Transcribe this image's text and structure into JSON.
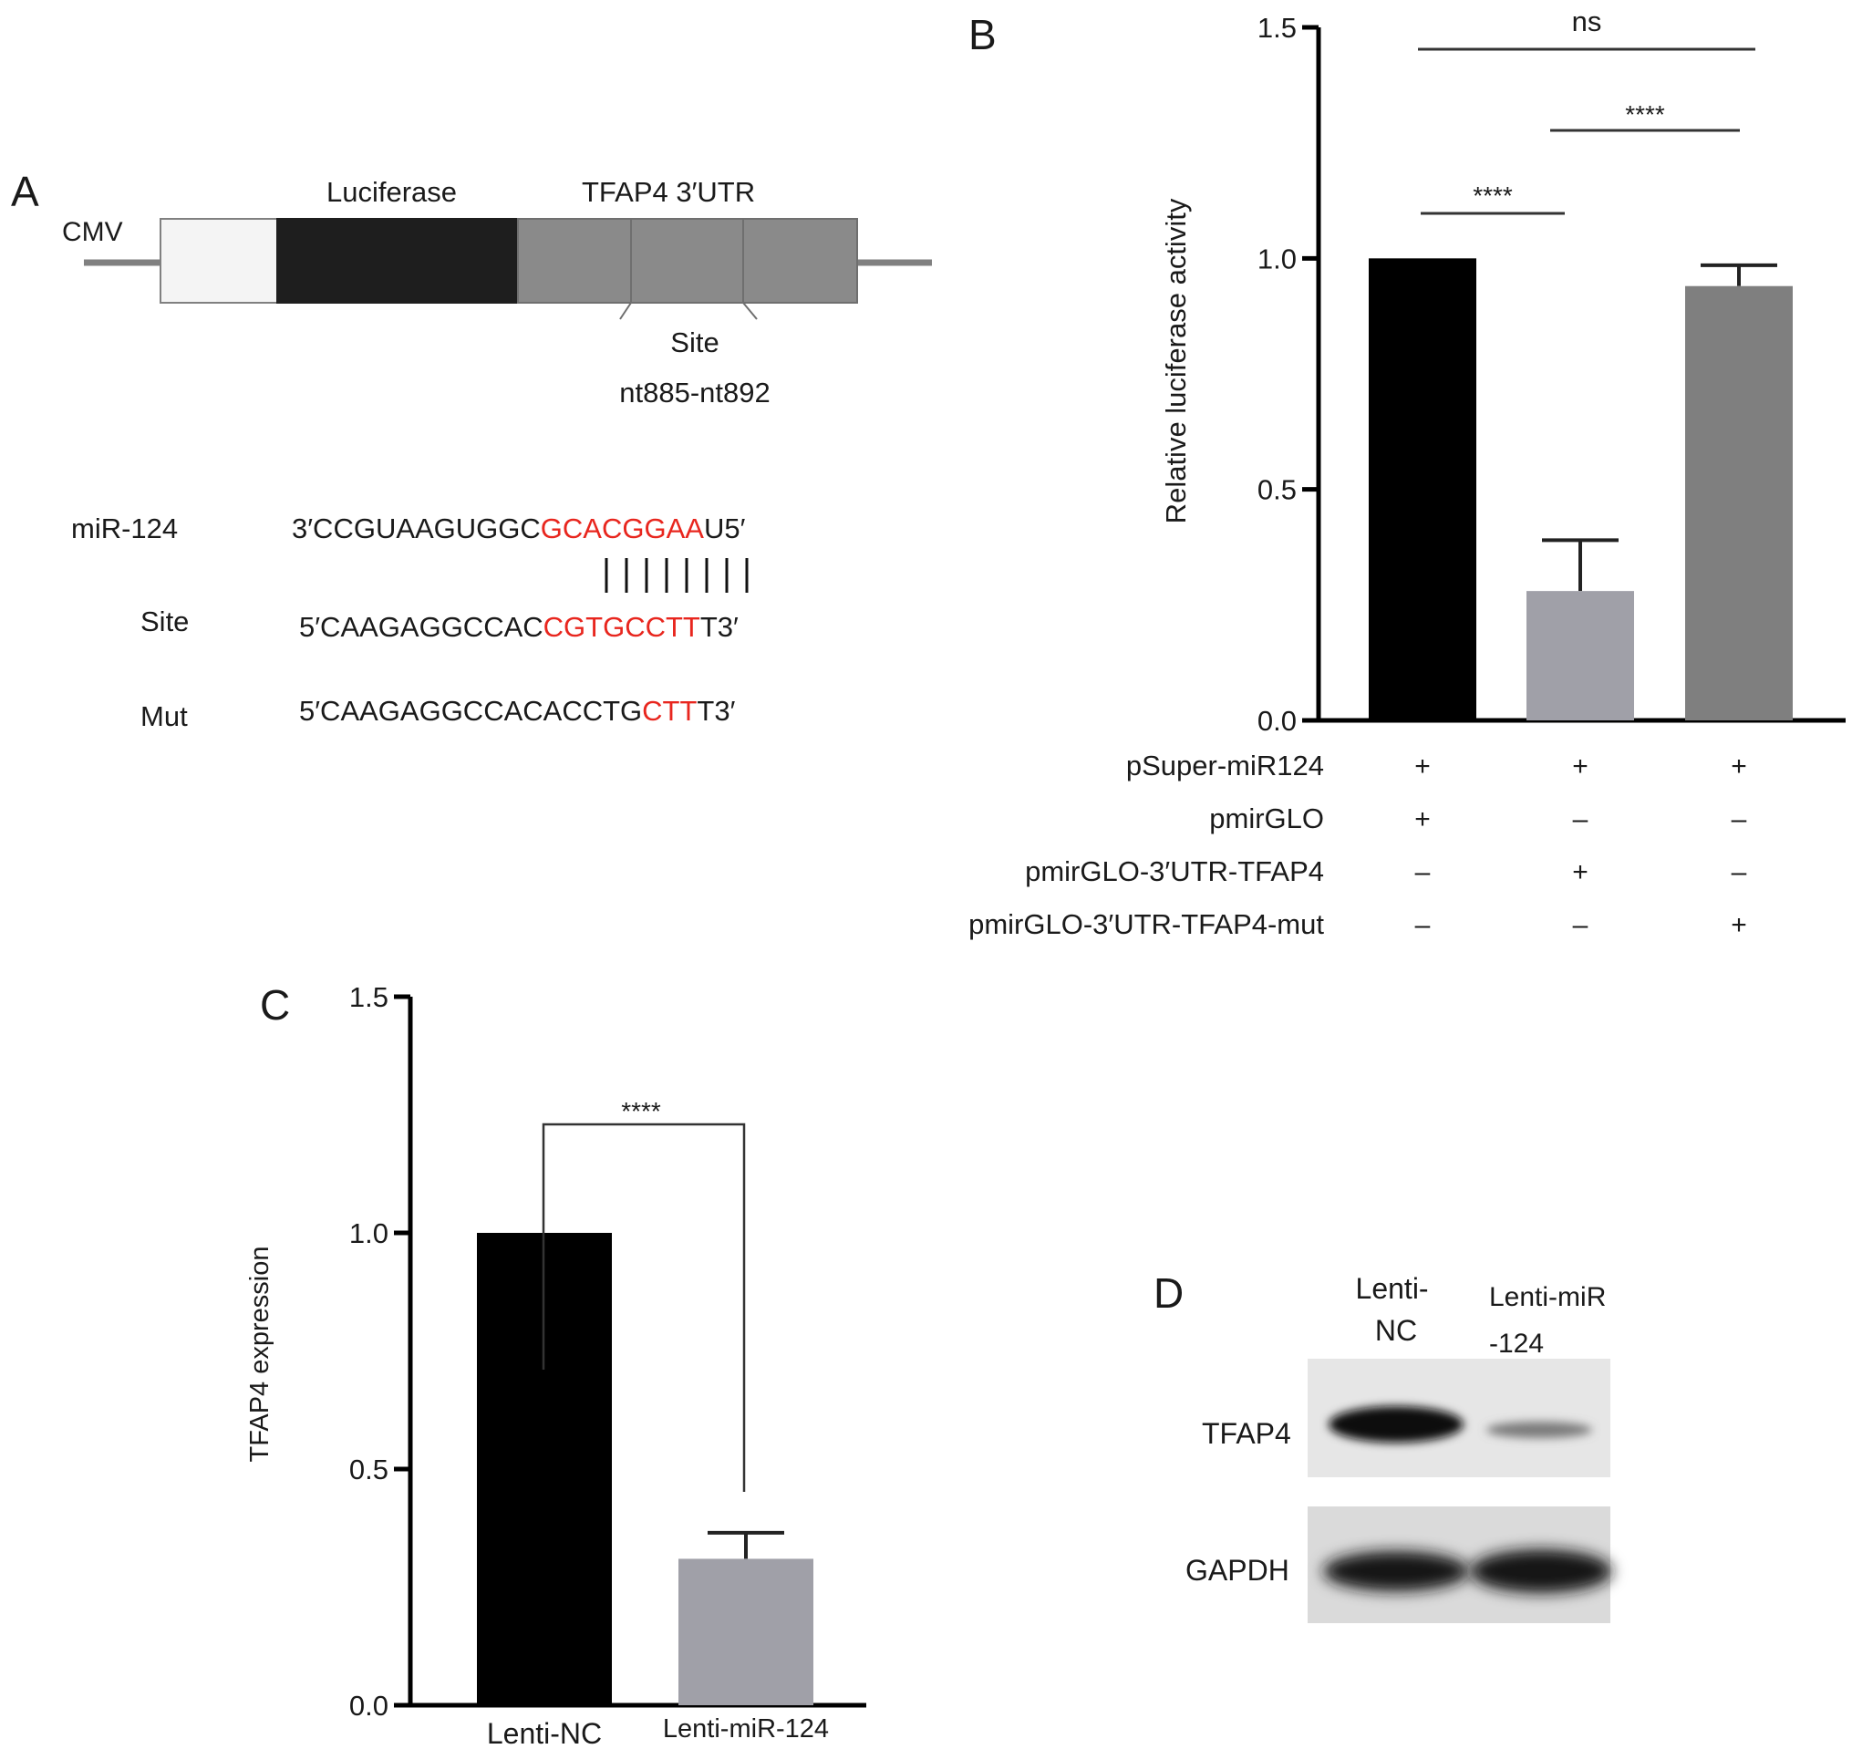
{
  "panels": {
    "a": {
      "label": "A",
      "promoter": "CMV",
      "luciferase": "Luciferase",
      "utr": "TFAP4 3′UTR",
      "site_label": "Site",
      "site_range": "nt885-nt892"
    },
    "b": {
      "label": "B"
    },
    "c": {
      "label": "C"
    },
    "d": {
      "label": "D"
    }
  },
  "sequences": [
    {
      "name": "miR-124",
      "black1": "3′CCGUAAGUGGC",
      "red": "GCACGGAA",
      "black2": "U5′"
    },
    {
      "name": "Site",
      "black1": "5′CAAGAGGCCAC",
      "red": "CGTGCCTT",
      "black2": "T3′"
    },
    {
      "name": "Mut",
      "black1": "5′CAAGAGGCCACACCTG",
      "red": "CTT",
      "black2": "T3′"
    }
  ],
  "chart_data": [
    {
      "panel": "B",
      "type": "bar",
      "ylabel": "Relative luciferase activity",
      "ylim": [
        0,
        1.5
      ],
      "yticks": [
        "0.0",
        "0.5",
        "1.0",
        "1.5"
      ],
      "values": [
        1.0,
        0.28,
        0.94
      ],
      "errors": [
        0,
        0.11,
        0.045
      ],
      "colors": [
        "#000000",
        "#a0a0a8",
        "#7f7f7f"
      ],
      "significance": [
        {
          "pair": [
            0,
            1
          ],
          "label": "****"
        },
        {
          "pair": [
            1,
            2
          ],
          "label": "****"
        },
        {
          "pair": [
            0,
            2
          ],
          "label": "ns"
        }
      ],
      "conditions": [
        {
          "name": "pSuper-miR124",
          "marks": [
            "+",
            "+",
            "+"
          ]
        },
        {
          "name": "pmirGLO",
          "marks": [
            "+",
            "–",
            "–"
          ]
        },
        {
          "name": "pmirGLO-3′UTR-TFAP4",
          "marks": [
            "–",
            "+",
            "–"
          ]
        },
        {
          "name": "pmirGLO-3′UTR-TFAP4-mut",
          "marks": [
            "–",
            "–",
            "+"
          ]
        }
      ]
    },
    {
      "panel": "C",
      "type": "bar",
      "ylabel": "TFAP4 expression",
      "ylim": [
        0,
        1.5
      ],
      "yticks": [
        "0.0",
        "0.5",
        "1.0",
        "1.5"
      ],
      "categories": [
        "Lenti-NC",
        "Lenti-miR-124"
      ],
      "values": [
        1.0,
        0.31
      ],
      "errors": [
        0,
        0.055
      ],
      "colors": [
        "#000000",
        "#a0a0a8"
      ],
      "significance": [
        {
          "pair": [
            0,
            1
          ],
          "label": "****"
        }
      ]
    }
  ],
  "western_blot": {
    "lanes": [
      "Lenti-\nNC",
      "Lenti-miR\n-124"
    ],
    "bands": [
      "TFAP4",
      "GAPDH"
    ]
  }
}
